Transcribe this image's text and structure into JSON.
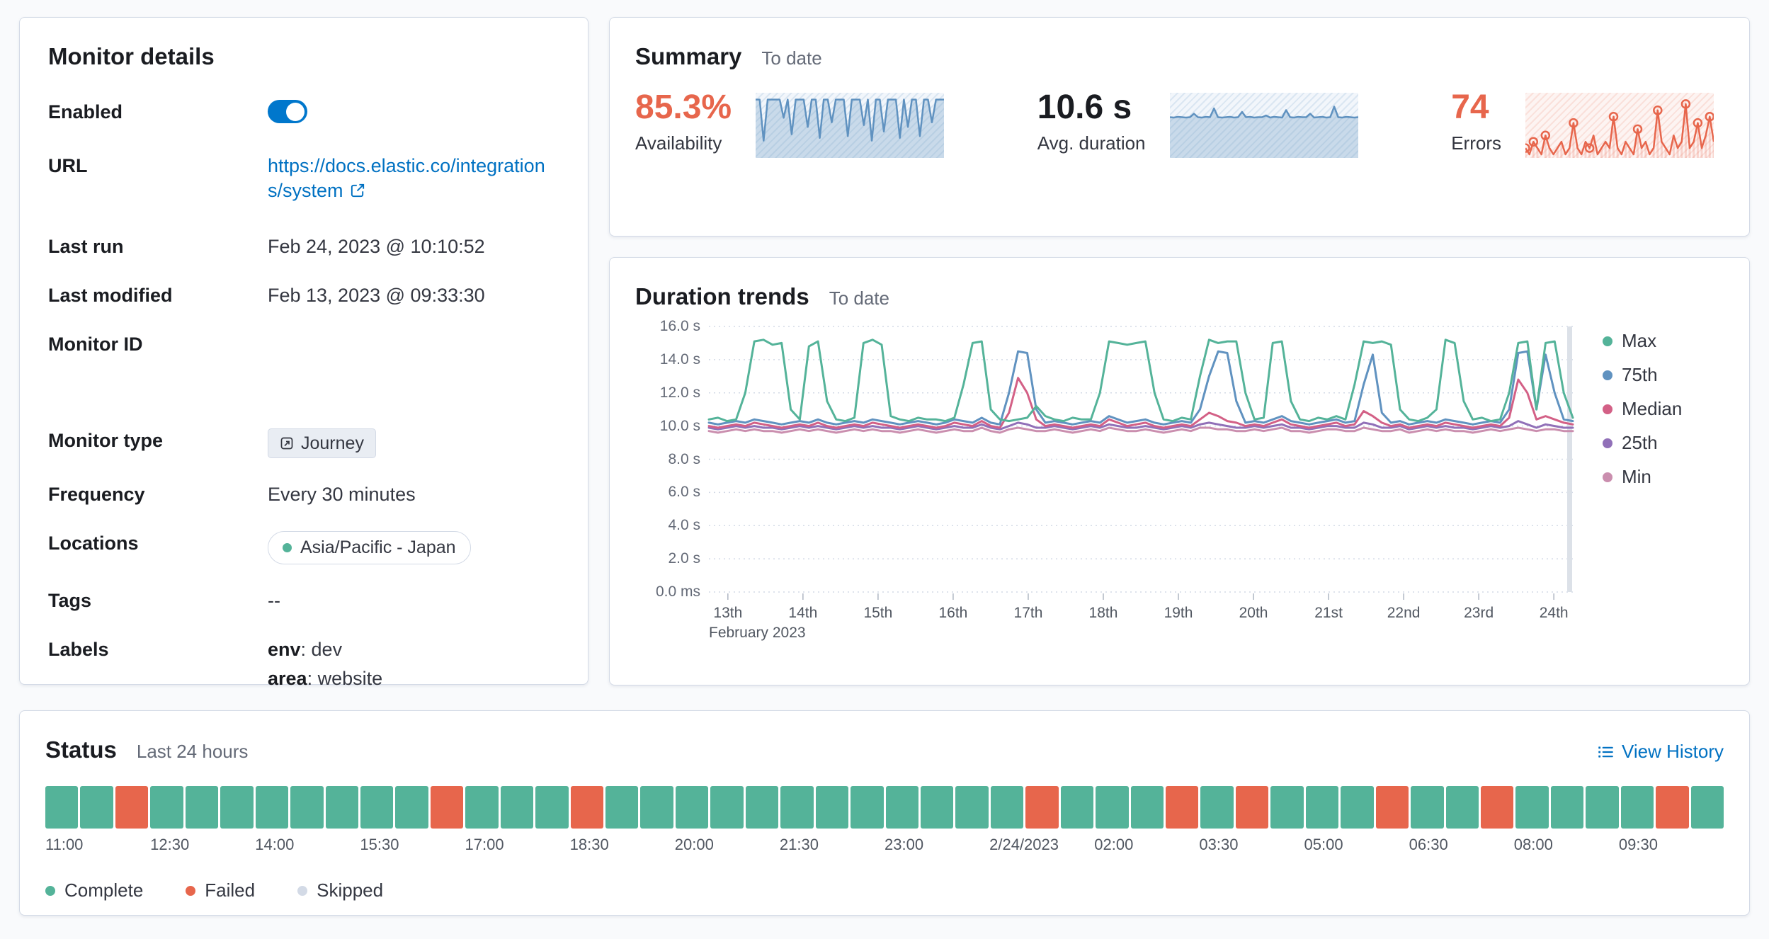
{
  "monitor_details": {
    "title": "Monitor details",
    "enabled_label": "Enabled",
    "url_label": "URL",
    "url_value": "https://docs.elastic.co/integrations/system",
    "last_run_label": "Last run",
    "last_run_value": "Feb 24, 2023 @ 10:10:52",
    "last_modified_label": "Last modified",
    "last_modified_value": "Feb 13, 2023 @ 09:33:30",
    "monitor_id_label": "Monitor ID",
    "monitor_type_label": "Monitor type",
    "monitor_type_value": "Journey",
    "frequency_label": "Frequency",
    "frequency_value": "Every 30 minutes",
    "locations_label": "Locations",
    "locations_value": "Asia/Pacific - Japan",
    "location_dot_color": "#54B399",
    "tags_label": "Tags",
    "tags_value": "--",
    "labels_label": "Labels",
    "label_env_key": "env",
    "label_env_rest": ": dev",
    "label_area_key": "area",
    "label_area_rest": ": website"
  },
  "summary": {
    "title": "Summary",
    "subtitle": "To date",
    "metrics": [
      {
        "value": "85.3%",
        "label": "Availability",
        "color": "#E7664C"
      },
      {
        "value": "10.6 s",
        "label": "Avg. duration",
        "color": "#1A1C21"
      },
      {
        "value": "74",
        "label": "Errors",
        "color": "#E7664C"
      }
    ]
  },
  "duration_trends": {
    "title": "Duration trends",
    "subtitle": "To date"
  },
  "status": {
    "title": "Status",
    "subtitle": "Last 24 hours",
    "view_history_label": "View History",
    "legend": [
      {
        "label": "Complete",
        "color": "#54B399"
      },
      {
        "label": "Failed",
        "color": "#E7664C"
      },
      {
        "label": "Skipped",
        "color": "#D3DAE6"
      }
    ]
  },
  "chart_data": [
    {
      "name": "duration-trends",
      "type": "line",
      "title": "Duration trends",
      "subtitle": "To date",
      "xlabel": "February 2023",
      "ylabel": "",
      "ylim": [
        0,
        16
      ],
      "grid": "horizontal-dotted",
      "legend_position": "right",
      "y_tick_labels": [
        "0.0 ms",
        "2.0 s",
        "4.0 s",
        "6.0 s",
        "8.0 s",
        "10.0 s",
        "12.0 s",
        "14.0 s",
        "16.0 s"
      ],
      "x_tick_labels": [
        "13th",
        "14th",
        "15th",
        "16th",
        "17th",
        "18th",
        "19th",
        "20th",
        "21st",
        "22nd",
        "23rd",
        "24th"
      ],
      "series": [
        {
          "name": "Max",
          "color": "#54B399",
          "values": [
            10.4,
            10.5,
            10.3,
            10.4,
            12.0,
            15.1,
            15.2,
            14.9,
            15.0,
            11.0,
            10.4,
            14.8,
            15.1,
            11.5,
            10.4,
            10.3,
            10.5,
            15.0,
            15.2,
            14.9,
            10.6,
            10.4,
            10.3,
            10.5,
            10.4,
            10.4,
            10.3,
            10.5,
            12.5,
            15.0,
            15.1,
            11.0,
            10.4,
            10.3,
            10.4,
            10.5,
            11.2,
            10.6,
            10.4,
            10.3,
            10.5,
            10.4,
            10.4,
            12.0,
            15.1,
            15.0,
            14.9,
            15.0,
            15.1,
            12.0,
            10.4,
            10.3,
            10.5,
            10.4,
            13.0,
            15.2,
            15.0,
            15.1,
            15.1,
            12.0,
            10.4,
            10.5,
            15.0,
            15.1,
            11.5,
            10.4,
            10.3,
            10.5,
            10.4,
            10.6,
            10.4,
            12.5,
            15.1,
            15.0,
            15.1,
            14.9,
            11.0,
            10.4,
            10.3,
            10.5,
            11.0,
            15.2,
            15.0,
            11.5,
            10.4,
            10.5,
            10.3,
            10.4,
            12.0,
            15.0,
            15.1,
            11.0,
            15.0,
            15.1,
            12.0,
            10.5
          ]
        },
        {
          "name": "75th",
          "color": "#6092C0",
          "values": [
            10.2,
            10.1,
            10.2,
            10.3,
            10.2,
            10.4,
            10.3,
            10.2,
            10.1,
            10.2,
            10.3,
            10.2,
            10.4,
            10.2,
            10.1,
            10.2,
            10.3,
            10.2,
            10.4,
            10.3,
            10.2,
            10.1,
            10.2,
            10.3,
            10.2,
            10.1,
            10.2,
            10.4,
            10.3,
            10.2,
            10.5,
            10.2,
            10.1,
            12.0,
            14.5,
            14.4,
            11.0,
            10.2,
            10.3,
            10.2,
            10.1,
            10.2,
            10.3,
            10.2,
            10.6,
            10.4,
            10.2,
            10.3,
            10.4,
            10.2,
            10.1,
            10.2,
            10.3,
            10.2,
            11.0,
            13.0,
            14.5,
            14.4,
            11.5,
            10.2,
            10.3,
            10.2,
            10.4,
            10.6,
            10.3,
            10.2,
            10.1,
            10.2,
            10.3,
            10.4,
            10.2,
            10.3,
            12.5,
            14.3,
            10.8,
            10.2,
            10.3,
            10.1,
            10.2,
            10.3,
            10.2,
            10.4,
            10.3,
            10.2,
            10.1,
            10.2,
            10.3,
            10.2,
            11.0,
            14.4,
            14.5,
            11.0,
            14.3,
            12.0,
            10.4,
            10.3
          ]
        },
        {
          "name": "Median",
          "color": "#D36086",
          "values": [
            10.0,
            9.9,
            10.0,
            10.1,
            10.0,
            10.2,
            10.1,
            10.0,
            9.9,
            10.0,
            10.1,
            10.0,
            10.2,
            10.0,
            9.9,
            10.0,
            10.1,
            10.0,
            10.2,
            10.1,
            10.0,
            9.9,
            10.0,
            10.1,
            10.0,
            9.9,
            10.0,
            10.2,
            10.1,
            10.0,
            10.3,
            10.0,
            9.9,
            10.8,
            12.9,
            12.0,
            10.4,
            10.0,
            10.1,
            10.0,
            9.9,
            10.0,
            10.1,
            10.0,
            10.4,
            10.2,
            10.0,
            10.1,
            10.2,
            10.0,
            9.9,
            10.0,
            10.1,
            10.0,
            10.4,
            10.8,
            10.6,
            10.3,
            10.2,
            10.0,
            10.1,
            10.0,
            10.2,
            10.4,
            10.1,
            10.0,
            9.9,
            10.0,
            10.1,
            10.2,
            10.0,
            10.1,
            10.9,
            10.6,
            10.2,
            10.0,
            10.1,
            9.9,
            10.0,
            10.1,
            10.0,
            10.2,
            10.1,
            10.0,
            9.9,
            10.0,
            10.1,
            10.0,
            10.5,
            12.8,
            12.0,
            10.4,
            10.6,
            10.4,
            10.2,
            10.1
          ]
        },
        {
          "name": "25th",
          "color": "#9170B8",
          "values": [
            9.9,
            9.8,
            9.9,
            10.0,
            9.9,
            10.0,
            9.9,
            9.9,
            9.8,
            9.9,
            10.0,
            9.9,
            10.0,
            9.9,
            9.8,
            9.9,
            10.0,
            9.9,
            10.0,
            9.9,
            9.9,
            9.8,
            9.9,
            10.0,
            9.9,
            9.8,
            9.9,
            10.0,
            9.9,
            9.9,
            10.1,
            9.9,
            9.8,
            10.0,
            10.2,
            10.1,
            9.9,
            9.9,
            10.0,
            9.9,
            9.8,
            9.9,
            10.0,
            9.9,
            10.1,
            10.0,
            9.9,
            9.9,
            10.0,
            9.9,
            9.8,
            9.9,
            10.0,
            9.9,
            10.1,
            10.2,
            10.1,
            10.0,
            9.9,
            9.9,
            10.0,
            9.9,
            10.0,
            10.1,
            9.9,
            9.9,
            9.8,
            9.9,
            10.0,
            10.0,
            9.9,
            9.9,
            10.2,
            10.1,
            9.9,
            9.9,
            10.0,
            9.8,
            9.9,
            10.0,
            9.9,
            10.0,
            9.9,
            9.9,
            9.8,
            9.9,
            10.0,
            9.9,
            10.0,
            10.3,
            10.1,
            9.9,
            10.1,
            10.0,
            9.9,
            9.9
          ]
        },
        {
          "name": "Min",
          "color": "#CA8EAE",
          "values": [
            9.7,
            9.6,
            9.7,
            9.8,
            9.7,
            9.8,
            9.7,
            9.7,
            9.6,
            9.7,
            9.8,
            9.7,
            9.8,
            9.7,
            9.6,
            9.7,
            9.8,
            9.7,
            9.8,
            9.7,
            9.7,
            9.6,
            9.7,
            9.8,
            9.7,
            9.6,
            9.7,
            9.8,
            9.7,
            9.7,
            9.9,
            9.7,
            9.6,
            9.8,
            9.9,
            9.8,
            9.7,
            9.7,
            9.8,
            9.7,
            9.6,
            9.7,
            9.8,
            9.7,
            9.9,
            9.8,
            9.7,
            9.7,
            9.8,
            9.7,
            9.6,
            9.7,
            9.8,
            9.7,
            9.9,
            9.9,
            9.8,
            9.8,
            9.7,
            9.7,
            9.8,
            9.7,
            9.8,
            9.9,
            9.7,
            9.7,
            9.6,
            9.7,
            9.8,
            9.8,
            9.7,
            9.7,
            9.9,
            9.8,
            9.7,
            9.7,
            9.8,
            9.6,
            9.7,
            9.8,
            9.7,
            9.8,
            9.7,
            9.7,
            9.6,
            9.7,
            9.8,
            9.7,
            9.8,
            9.9,
            9.8,
            9.7,
            9.8,
            9.8,
            9.7,
            9.7
          ]
        }
      ]
    },
    {
      "name": "availability-sparkline",
      "type": "area",
      "ylim": [
        40,
        102
      ],
      "color": "#6092C0",
      "fill": "rgba(96,146,192,0.28)",
      "values": [
        100,
        100,
        55,
        100,
        100,
        100,
        100,
        80,
        100,
        62,
        100,
        100,
        100,
        70,
        100,
        100,
        58,
        100,
        100,
        75,
        100,
        100,
        100,
        60,
        100,
        100,
        100,
        72,
        100,
        55,
        100,
        100,
        65,
        100,
        100,
        100,
        58,
        100,
        70,
        100,
        100,
        60,
        100,
        100,
        75,
        100,
        100,
        100
      ]
    },
    {
      "name": "avg-duration-sparkline",
      "type": "area",
      "ylim": [
        0,
        16
      ],
      "color": "#6092C0",
      "fill": "rgba(96,146,192,0.28)",
      "values": [
        10.5,
        10.4,
        10.6,
        10.5,
        10.4,
        10.5,
        11.5,
        10.5,
        10.4,
        10.6,
        10.5,
        13.0,
        10.5,
        10.4,
        10.5,
        10.6,
        10.4,
        10.5,
        12.0,
        10.5,
        10.6,
        10.4,
        10.5,
        10.5,
        11.0,
        10.4,
        10.6,
        10.5,
        10.4,
        12.5,
        10.5,
        10.4,
        10.6,
        10.5,
        10.5,
        11.5,
        10.4,
        10.5,
        10.6,
        10.4,
        10.5,
        13.5,
        10.5,
        10.4,
        10.6,
        10.5,
        10.4,
        10.5
      ]
    },
    {
      "name": "errors-sparkline",
      "type": "line",
      "ylim": [
        0,
        9
      ],
      "color": "#E7664C",
      "bar_fill": "rgba(231,102,76,0.22)",
      "values": [
        1,
        0,
        2,
        1,
        0,
        3,
        1,
        0,
        1,
        2,
        0,
        1,
        5,
        1,
        0,
        2,
        1,
        3,
        0,
        1,
        2,
        1,
        6,
        1,
        0,
        2,
        1,
        0,
        4,
        1,
        2,
        0,
        1,
        7,
        2,
        1,
        0,
        3,
        1,
        2,
        8,
        1,
        2,
        5,
        1,
        3,
        6,
        2
      ],
      "marker_indices": [
        0,
        2,
        5,
        12,
        16,
        22,
        28,
        33,
        40,
        43,
        46
      ]
    },
    {
      "name": "status-last-24-hours",
      "type": "heatmap",
      "interval_minutes": 30,
      "x_tick_labels": [
        "11:00",
        "12:30",
        "14:00",
        "15:30",
        "17:00",
        "18:30",
        "20:00",
        "21:30",
        "23:00",
        "2/24/2023",
        "02:00",
        "03:30",
        "05:00",
        "06:30",
        "08:00",
        "09:30"
      ],
      "statuses": [
        "complete",
        "complete",
        "failed",
        "complete",
        "complete",
        "complete",
        "complete",
        "complete",
        "complete",
        "complete",
        "complete",
        "failed",
        "complete",
        "complete",
        "complete",
        "failed",
        "complete",
        "complete",
        "complete",
        "complete",
        "complete",
        "complete",
        "complete",
        "complete",
        "complete",
        "complete",
        "complete",
        "complete",
        "failed",
        "complete",
        "complete",
        "complete",
        "failed",
        "complete",
        "failed",
        "complete",
        "complete",
        "complete",
        "failed",
        "complete",
        "complete",
        "failed",
        "complete",
        "complete",
        "complete",
        "complete",
        "failed",
        "complete"
      ]
    }
  ]
}
